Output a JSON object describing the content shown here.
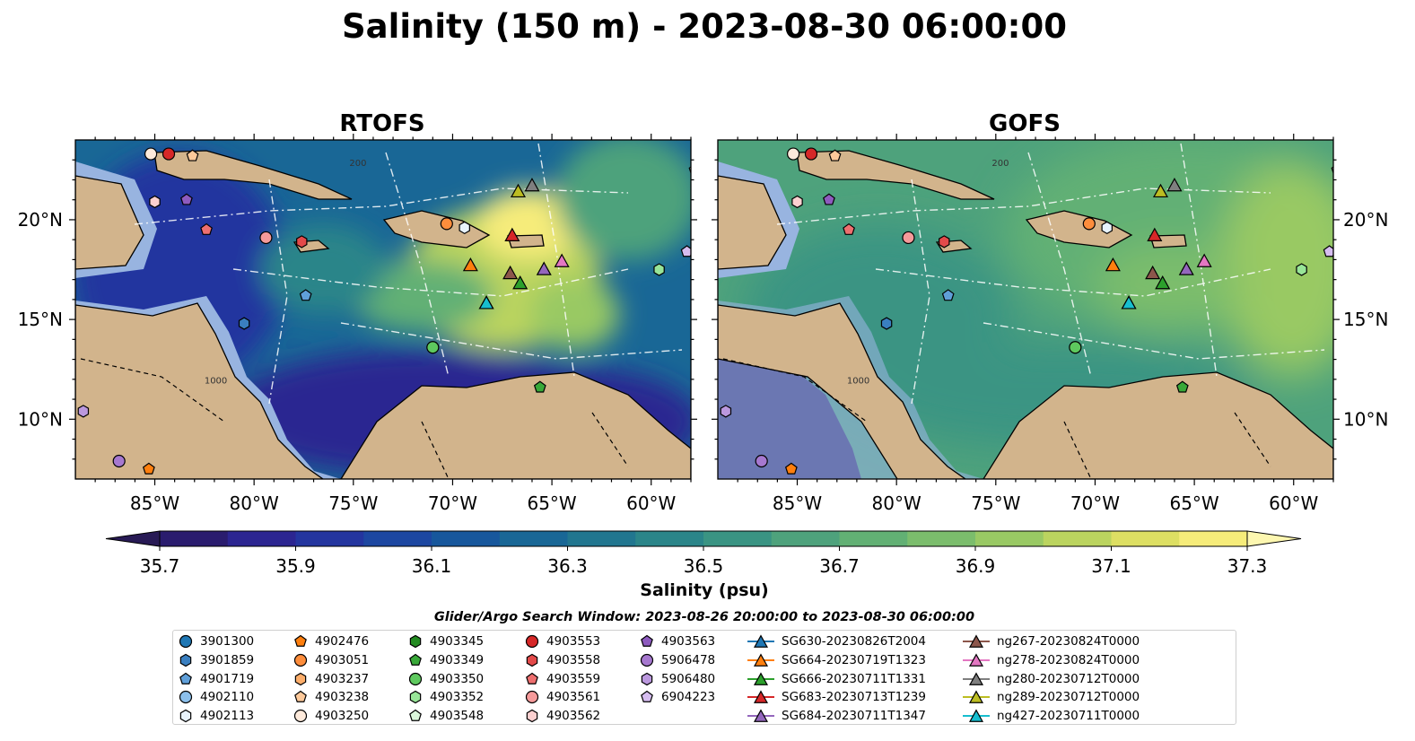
{
  "chart_data": {
    "type": "heatmap",
    "title": "Salinity (150 m) - 2023-08-30 06:00:00",
    "panels": [
      {
        "title": "RTOFS"
      },
      {
        "title": "GOFS"
      }
    ],
    "map_extent": {
      "lon": [
        -89,
        -58
      ],
      "lat": [
        7,
        24
      ]
    },
    "x_ticks": [
      "85°W",
      "80°W",
      "75°W",
      "70°W",
      "65°W",
      "60°W"
    ],
    "x_tick_values": [
      -85,
      -80,
      -75,
      -70,
      -65,
      -60
    ],
    "y_ticks": [
      "20°N",
      "15°N",
      "10°N"
    ],
    "y_tick_values": [
      20,
      15,
      10
    ],
    "contour_labels": [
      "200",
      "1000"
    ],
    "colorbar": {
      "label": "Salinity (psu)",
      "min": 35.7,
      "max": 37.3,
      "step": 0.1,
      "extend": "both",
      "ticks": [
        "35.7",
        "35.9",
        "36.1",
        "36.3",
        "36.5",
        "36.7",
        "36.9",
        "37.1",
        "37.3"
      ],
      "colors": [
        "#2a1c6e",
        "#2c2591",
        "#24359f",
        "#1d47a1",
        "#17579c",
        "#196796",
        "#21768f",
        "#2b8589",
        "#3a9483",
        "#4ea27c",
        "#62b074",
        "#7bbd6c",
        "#99c964",
        "#bbd45f",
        "#dddf63",
        "#f6ec7a"
      ],
      "under_color": "#281a55",
      "over_color": "#fdf7b0"
    },
    "land_color": "#d2b48c",
    "shelf_color": "#98b4e0",
    "search_window_label": "Glider/Argo Search Window: 2023-08-26 20:00:00 to 2023-08-30 06:00:00",
    "legend": [
      {
        "label": "3901300",
        "marker": "circle",
        "color": "#1f77b4"
      },
      {
        "label": "3901859",
        "marker": "hexagon",
        "color": "#3a7fc0"
      },
      {
        "label": "4901719",
        "marker": "pentagon",
        "color": "#5f9fd9"
      },
      {
        "label": "4902110",
        "marker": "circle",
        "color": "#8cc0ec"
      },
      {
        "label": "4902113",
        "marker": "hexagon",
        "color": "#e8f3fc"
      },
      {
        "label": "4902476",
        "marker": "pentagon",
        "color": "#ff7f0e"
      },
      {
        "label": "4903051",
        "marker": "circle",
        "color": "#fd8d3c"
      },
      {
        "label": "4903237",
        "marker": "hexagon",
        "color": "#fdae6b"
      },
      {
        "label": "4903238",
        "marker": "pentagon",
        "color": "#fdc99a"
      },
      {
        "label": "4903250",
        "marker": "circle",
        "color": "#feeadb"
      },
      {
        "label": "4903345",
        "marker": "hexagon",
        "color": "#238b22"
      },
      {
        "label": "4903349",
        "marker": "pentagon",
        "color": "#38a838"
      },
      {
        "label": "4903350",
        "marker": "circle",
        "color": "#5ec95e"
      },
      {
        "label": "4903352",
        "marker": "hexagon",
        "color": "#98e598"
      },
      {
        "label": "4903548",
        "marker": "pentagon",
        "color": "#dcf7dc"
      },
      {
        "label": "4903553",
        "marker": "circle",
        "color": "#d62728"
      },
      {
        "label": "4903558",
        "marker": "hexagon",
        "color": "#e34a4a"
      },
      {
        "label": "4903559",
        "marker": "pentagon",
        "color": "#ee6f6f"
      },
      {
        "label": "4903561",
        "marker": "circle",
        "color": "#f59a9a"
      },
      {
        "label": "4903562",
        "marker": "hexagon",
        "color": "#fcd0d0"
      },
      {
        "label": "4903563",
        "marker": "pentagon",
        "color": "#8e5bbf"
      },
      {
        "label": "5906478",
        "marker": "circle",
        "color": "#a678cf"
      },
      {
        "label": "5906480",
        "marker": "hexagon",
        "color": "#bb98de"
      },
      {
        "label": "6904223",
        "marker": "pentagon",
        "color": "#d6bdf0"
      },
      {
        "label": "SG630-20230826T2004",
        "marker": "triangle-line",
        "color": "#1f77b4"
      },
      {
        "label": "SG664-20230719T1323",
        "marker": "triangle-line",
        "color": "#ff7f0e"
      },
      {
        "label": "SG666-20230711T1331",
        "marker": "triangle-line",
        "color": "#2ca02c"
      },
      {
        "label": "SG683-20230713T1239",
        "marker": "triangle-line",
        "color": "#d62728"
      },
      {
        "label": "SG684-20230711T1347",
        "marker": "triangle-line",
        "color": "#9467bd"
      },
      {
        "label": "ng267-20230824T0000",
        "marker": "triangle-line",
        "color": "#8c564b"
      },
      {
        "label": "ng278-20230824T0000",
        "marker": "triangle-line",
        "color": "#e377c2"
      },
      {
        "label": "ng280-20230712T0000",
        "marker": "triangle-line",
        "color": "#7f7f7f"
      },
      {
        "label": "ng289-20230712T0000",
        "marker": "triangle-line",
        "color": "#bcbd22"
      },
      {
        "label": "ng427-20230711T0000",
        "marker": "triangle-line",
        "color": "#17becf"
      }
    ],
    "observations": [
      {
        "id": "4903250",
        "lon": -85.2,
        "lat": 23.3
      },
      {
        "id": "4903553",
        "lon": -84.3,
        "lat": 23.3
      },
      {
        "id": "4903238",
        "lon": -83.1,
        "lat": 23.2
      },
      {
        "id": "4903562",
        "lon": -85.0,
        "lat": 20.9
      },
      {
        "id": "4903563",
        "lon": -83.4,
        "lat": 21.0
      },
      {
        "id": "4903559",
        "lon": -82.4,
        "lat": 19.5
      },
      {
        "id": "4903561",
        "lon": -79.4,
        "lat": 19.1
      },
      {
        "id": "4903558",
        "lon": -77.6,
        "lat": 18.9
      },
      {
        "id": "4901719",
        "lon": -77.4,
        "lat": 16.2
      },
      {
        "id": "3901859",
        "lon": -80.5,
        "lat": 14.8
      },
      {
        "id": "4903051",
        "lon": -70.3,
        "lat": 19.8
      },
      {
        "id": "4902113",
        "lon": -69.4,
        "lat": 19.6
      },
      {
        "id": "4903350",
        "lon": -71.0,
        "lat": 13.6
      },
      {
        "id": "4903349",
        "lon": -65.6,
        "lat": 11.6
      },
      {
        "id": "4903352",
        "lon": -59.6,
        "lat": 17.5
      },
      {
        "id": "6904223",
        "lon": -58.2,
        "lat": 18.4
      },
      {
        "id": "4903548",
        "lon": -57.8,
        "lat": 22.5
      },
      {
        "id": "5906480",
        "lon": -88.6,
        "lat": 10.4
      },
      {
        "id": "5906478",
        "lon": -86.8,
        "lat": 7.9
      },
      {
        "id": "4902476",
        "lon": -85.3,
        "lat": 7.5
      },
      {
        "id": "SG630-20230826T2004",
        "lon": -68.3,
        "lat": 15.8
      },
      {
        "id": "SG664-20230719T1323",
        "lon": -69.1,
        "lat": 17.7
      },
      {
        "id": "SG666-20230711T1331",
        "lon": -66.6,
        "lat": 16.8
      },
      {
        "id": "SG683-20230713T1239",
        "lon": -67.0,
        "lat": 19.2
      },
      {
        "id": "SG684-20230711T1347",
        "lon": -65.4,
        "lat": 17.5
      },
      {
        "id": "ng267-20230824T0000",
        "lon": -67.1,
        "lat": 17.3
      },
      {
        "id": "ng278-20230824T0000",
        "lon": -64.5,
        "lat": 17.9
      },
      {
        "id": "ng280-20230712T0000",
        "lon": -66.0,
        "lat": 21.7
      },
      {
        "id": "ng289-20230712T0000",
        "lon": -66.7,
        "lat": 21.4
      },
      {
        "id": "ng427-20230711T0000",
        "lon": -68.3,
        "lat": 15.8
      }
    ]
  }
}
